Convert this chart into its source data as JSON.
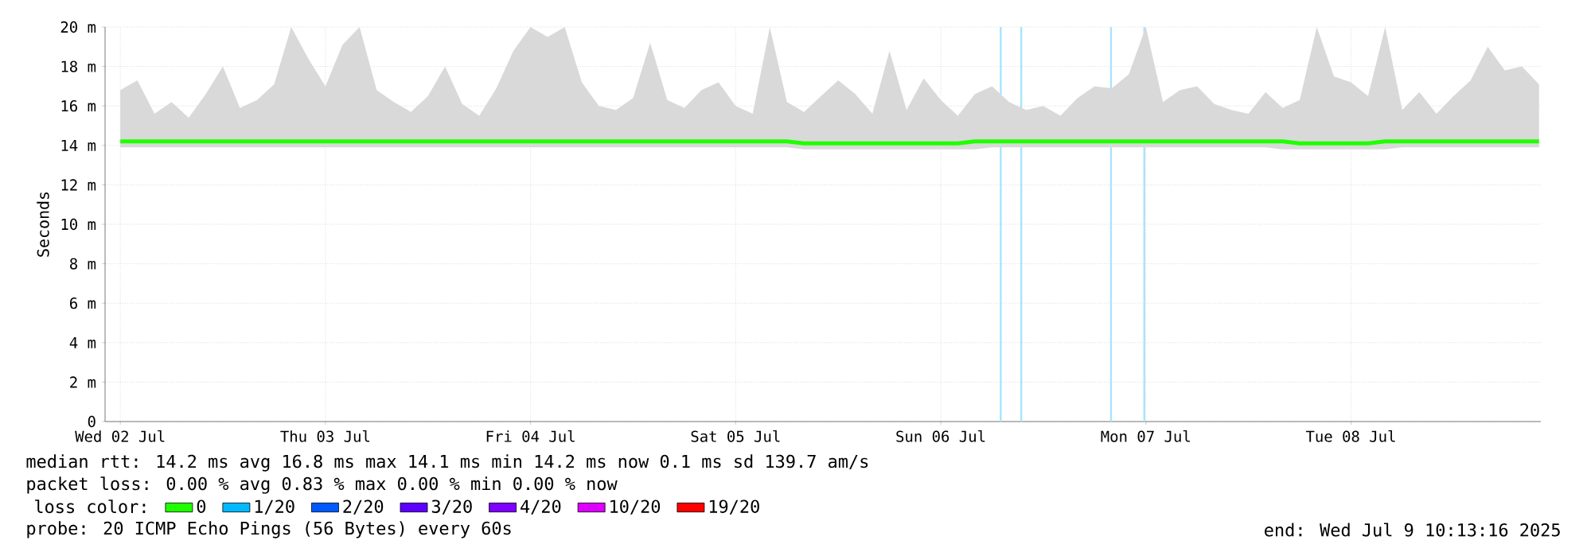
{
  "chart_data": {
    "type": "line",
    "ylabel": "Seconds",
    "xlim": [
      "2025-07-02T10:13",
      "2025-07-09T10:13"
    ],
    "xticks": [
      {
        "value": "2025-07-02T12:00",
        "label": "Wed 02 Jul"
      },
      {
        "value": "2025-07-03T12:00",
        "label": "Thu 03 Jul"
      },
      {
        "value": "2025-07-04T12:00",
        "label": "Fri 04 Jul"
      },
      {
        "value": "2025-07-05T12:00",
        "label": "Sat 05 Jul"
      },
      {
        "value": "2025-07-06T12:00",
        "label": "Sun 06 Jul"
      },
      {
        "value": "2025-07-07T12:00",
        "label": "Mon 07 Jul"
      },
      {
        "value": "2025-07-08T12:00",
        "label": "Tue 08 Jul"
      }
    ],
    "ylim": [
      0,
      20
    ],
    "yticks": [
      0,
      {
        "value": 2,
        "label": "2 m"
      },
      {
        "value": 4,
        "label": "4 m"
      },
      {
        "value": 6,
        "label": "6 m"
      },
      {
        "value": 8,
        "label": "8 m"
      },
      {
        "value": 10,
        "label": "10 m"
      },
      {
        "value": 12,
        "label": "12 m"
      },
      {
        "value": 14,
        "label": "14 m"
      },
      {
        "value": 16,
        "label": "16 m"
      },
      {
        "value": 18,
        "label": "18 m"
      },
      {
        "value": 20,
        "label": "20 m"
      }
    ],
    "grid": true,
    "legend": "bottom",
    "legend_title": "loss color:",
    "x": [
      "2025-07-02T12:00",
      "2025-07-02T14:00",
      "2025-07-02T16:00",
      "2025-07-02T18:00",
      "2025-07-02T20:00",
      "2025-07-02T22:00",
      "2025-07-03T00:00",
      "2025-07-03T02:00",
      "2025-07-03T04:00",
      "2025-07-03T06:00",
      "2025-07-03T08:00",
      "2025-07-03T10:00",
      "2025-07-03T12:00",
      "2025-07-03T14:00",
      "2025-07-03T16:00",
      "2025-07-03T18:00",
      "2025-07-03T20:00",
      "2025-07-03T22:00",
      "2025-07-04T00:00",
      "2025-07-04T02:00",
      "2025-07-04T04:00",
      "2025-07-04T06:00",
      "2025-07-04T08:00",
      "2025-07-04T10:00",
      "2025-07-04T12:00",
      "2025-07-04T14:00",
      "2025-07-04T16:00",
      "2025-07-04T18:00",
      "2025-07-04T20:00",
      "2025-07-04T22:00",
      "2025-07-05T00:00",
      "2025-07-05T02:00",
      "2025-07-05T04:00",
      "2025-07-05T06:00",
      "2025-07-05T08:00",
      "2025-07-05T10:00",
      "2025-07-05T12:00",
      "2025-07-05T14:00",
      "2025-07-05T16:00",
      "2025-07-05T18:00",
      "2025-07-05T20:00",
      "2025-07-05T22:00",
      "2025-07-06T00:00",
      "2025-07-06T02:00",
      "2025-07-06T04:00",
      "2025-07-06T06:00",
      "2025-07-06T08:00",
      "2025-07-06T10:00",
      "2025-07-06T12:00",
      "2025-07-06T14:00",
      "2025-07-06T16:00",
      "2025-07-06T18:00",
      "2025-07-06T20:00",
      "2025-07-06T22:00",
      "2025-07-07T00:00",
      "2025-07-07T02:00",
      "2025-07-07T04:00",
      "2025-07-07T06:00",
      "2025-07-07T08:00",
      "2025-07-07T10:00",
      "2025-07-07T12:00",
      "2025-07-07T14:00",
      "2025-07-07T16:00",
      "2025-07-07T18:00",
      "2025-07-07T20:00",
      "2025-07-07T22:00",
      "2025-07-08T00:00",
      "2025-07-08T02:00",
      "2025-07-08T04:00",
      "2025-07-08T06:00",
      "2025-07-08T08:00",
      "2025-07-08T10:00",
      "2025-07-08T12:00",
      "2025-07-08T14:00",
      "2025-07-08T16:00",
      "2025-07-08T18:00",
      "2025-07-08T20:00",
      "2025-07-08T22:00",
      "2025-07-09T00:00",
      "2025-07-09T02:00",
      "2025-07-09T04:00",
      "2025-07-09T06:00",
      "2025-07-09T08:00",
      "2025-07-09T10:00"
    ],
    "series": [
      {
        "name": "0",
        "color": "#20ff00",
        "values": [
          14.2,
          14.2,
          14.2,
          14.2,
          14.2,
          14.2,
          14.2,
          14.2,
          14.2,
          14.2,
          14.2,
          14.2,
          14.2,
          14.2,
          14.2,
          14.2,
          14.2,
          14.2,
          14.2,
          14.2,
          14.2,
          14.2,
          14.2,
          14.2,
          14.2,
          14.2,
          14.2,
          14.2,
          14.2,
          14.2,
          14.2,
          14.2,
          14.2,
          14.2,
          14.2,
          14.2,
          14.2,
          14.2,
          14.2,
          14.2,
          14.1,
          14.1,
          14.1,
          14.1,
          14.1,
          14.1,
          14.1,
          14.1,
          14.1,
          14.1,
          14.2,
          14.2,
          14.2,
          14.2,
          14.2,
          14.2,
          14.2,
          14.2,
          14.2,
          14.2,
          14.2,
          14.2,
          14.2,
          14.2,
          14.2,
          14.2,
          14.2,
          14.2,
          14.2,
          14.1,
          14.1,
          14.1,
          14.1,
          14.1,
          14.2,
          14.2,
          14.2,
          14.2,
          14.2,
          14.2,
          14.2,
          14.2,
          14.2,
          14.2
        ],
        "lower": [
          13.9,
          13.9,
          13.9,
          13.9,
          13.9,
          13.9,
          13.9,
          13.9,
          13.9,
          13.9,
          13.9,
          13.9,
          13.9,
          13.9,
          13.9,
          13.9,
          13.9,
          13.9,
          13.9,
          13.9,
          13.9,
          13.9,
          13.9,
          13.9,
          13.9,
          13.9,
          13.9,
          13.9,
          13.9,
          13.9,
          13.9,
          13.9,
          13.9,
          13.9,
          13.9,
          13.9,
          13.9,
          13.9,
          13.9,
          13.9,
          13.8,
          13.8,
          13.8,
          13.8,
          13.8,
          13.8,
          13.8,
          13.8,
          13.8,
          13.8,
          13.8,
          13.9,
          13.9,
          13.9,
          13.9,
          13.9,
          13.9,
          13.9,
          13.9,
          13.9,
          13.9,
          13.9,
          13.9,
          13.9,
          13.9,
          13.9,
          13.9,
          13.9,
          13.8,
          13.8,
          13.8,
          13.8,
          13.8,
          13.8,
          13.8,
          13.9,
          13.9,
          13.9,
          13.9,
          13.9,
          13.9,
          13.9,
          13.9,
          13.9
        ],
        "upper": [
          16.8,
          17.3,
          15.6,
          16.2,
          15.4,
          16.6,
          18.0,
          15.9,
          16.3,
          17.1,
          20.0,
          18.4,
          17.0,
          19.1,
          20.0,
          16.8,
          16.2,
          15.7,
          16.5,
          18.0,
          16.1,
          15.5,
          16.9,
          18.8,
          20.0,
          19.5,
          20.0,
          17.2,
          16.0,
          15.8,
          16.4,
          19.2,
          16.3,
          15.9,
          16.8,
          17.2,
          16.0,
          15.6,
          20.0,
          16.2,
          15.7,
          16.5,
          17.3,
          16.6,
          15.6,
          18.8,
          15.8,
          17.4,
          16.3,
          15.5,
          16.6,
          17.0,
          16.2,
          15.8,
          16.0,
          15.5,
          16.4,
          17.0,
          16.9,
          17.6,
          20.0,
          16.2,
          16.8,
          17.0,
          16.1,
          15.8,
          15.6,
          16.7,
          15.9,
          16.3,
          20.0,
          17.5,
          17.2,
          16.5,
          20.0,
          15.8,
          16.7,
          15.6,
          16.5,
          17.3,
          19.0,
          17.8,
          18.0,
          17.1
        ]
      },
      {
        "name": "1/20",
        "color": "#00b8ff",
        "values": [
          null,
          null,
          null,
          null,
          null,
          null,
          null,
          null,
          null,
          null,
          null,
          null,
          null,
          null,
          null,
          null,
          null,
          null,
          null,
          null,
          null,
          null,
          null,
          null,
          null,
          null,
          null,
          null,
          null,
          null,
          null,
          null,
          null,
          null,
          null,
          null,
          null,
          null,
          null,
          null,
          null,
          null,
          null,
          null,
          null,
          null,
          null,
          null,
          null,
          null,
          null,
          null,
          null,
          null,
          null,
          null,
          null,
          null,
          null,
          null,
          null,
          null,
          null,
          null,
          null,
          null,
          null,
          null,
          null,
          null,
          null,
          null,
          null,
          null,
          null,
          null,
          null,
          null,
          null,
          null,
          null,
          null,
          null,
          null
        ]
      },
      {
        "name": "2/20",
        "color": "#0059ff",
        "values": [
          null,
          null,
          null,
          null,
          null,
          null,
          null,
          null,
          null,
          null,
          null,
          null,
          null,
          null,
          null,
          null,
          null,
          null,
          null,
          null,
          null,
          null,
          null,
          null,
          null,
          null,
          null,
          null,
          null,
          null,
          null,
          null,
          null,
          null,
          null,
          null,
          null,
          null,
          null,
          null,
          null,
          null,
          null,
          null,
          null,
          null,
          null,
          null,
          null,
          null,
          null,
          null,
          null,
          null,
          null,
          null,
          null,
          null,
          null,
          null,
          null,
          null,
          null,
          null,
          null,
          null,
          null,
          null,
          null,
          null,
          null,
          null,
          null,
          null,
          null,
          null,
          null,
          null,
          null,
          null,
          null,
          null,
          null,
          null
        ]
      },
      {
        "name": "3/20",
        "color": "#5e00ff",
        "values": [
          null,
          null,
          null,
          null,
          null,
          null,
          null,
          null,
          null,
          null,
          null,
          null,
          null,
          null,
          null,
          null,
          null,
          null,
          null,
          null,
          null,
          null,
          null,
          null,
          null,
          null,
          null,
          null,
          null,
          null,
          null,
          null,
          null,
          null,
          null,
          null,
          null,
          null,
          null,
          null,
          null,
          null,
          null,
          null,
          null,
          null,
          null,
          null,
          null,
          null,
          null,
          null,
          null,
          null,
          null,
          null,
          null,
          null,
          null,
          null,
          null,
          null,
          null,
          null,
          null,
          null,
          null,
          null,
          null,
          null,
          null,
          null,
          null,
          null,
          null,
          null,
          null,
          null,
          null,
          null,
          null,
          null,
          null,
          null
        ]
      },
      {
        "name": "4/20",
        "color": "#7e00ff",
        "values": [
          null,
          null,
          null,
          null,
          null,
          null,
          null,
          null,
          null,
          null,
          null,
          null,
          null,
          null,
          null,
          null,
          null,
          null,
          null,
          null,
          null,
          null,
          null,
          null,
          null,
          null,
          null,
          null,
          null,
          null,
          null,
          null,
          null,
          null,
          null,
          null,
          null,
          null,
          null,
          null,
          null,
          null,
          null,
          null,
          null,
          null,
          null,
          null,
          null,
          null,
          null,
          null,
          null,
          null,
          null,
          null,
          null,
          null,
          null,
          null,
          null,
          null,
          null,
          null,
          null,
          null,
          null,
          null,
          null,
          null,
          null,
          null,
          null,
          null,
          null,
          null,
          null,
          null,
          null,
          null,
          null,
          null,
          null,
          null
        ]
      },
      {
        "name": "10/20",
        "color": "#dd00ff",
        "values": [
          null,
          null,
          null,
          null,
          null,
          null,
          null,
          null,
          null,
          null,
          null,
          null,
          null,
          null,
          null,
          null,
          null,
          null,
          null,
          null,
          null,
          null,
          null,
          null,
          null,
          null,
          null,
          null,
          null,
          null,
          null,
          null,
          null,
          null,
          null,
          null,
          null,
          null,
          null,
          null,
          null,
          null,
          null,
          null,
          null,
          null,
          null,
          null,
          null,
          null,
          null,
          null,
          null,
          null,
          null,
          null,
          null,
          null,
          null,
          null,
          null,
          null,
          null,
          null,
          null,
          null,
          null,
          null,
          null,
          null,
          null,
          null,
          null,
          null,
          null,
          null,
          null,
          null,
          null,
          null,
          null,
          null,
          null,
          null
        ]
      },
      {
        "name": "19/20",
        "color": "#ff0000",
        "values": [
          null,
          null,
          null,
          null,
          null,
          null,
          null,
          null,
          null,
          null,
          null,
          null,
          null,
          null,
          null,
          null,
          null,
          null,
          null,
          null,
          null,
          null,
          null,
          null,
          null,
          null,
          null,
          null,
          null,
          null,
          null,
          null,
          null,
          null,
          null,
          null,
          null,
          null,
          null,
          null,
          null,
          null,
          null,
          null,
          null,
          null,
          null,
          null,
          null,
          null,
          null,
          null,
          null,
          null,
          null,
          null,
          null,
          null,
          null,
          null,
          null,
          null,
          null,
          null,
          null,
          null,
          null,
          null,
          null,
          null,
          null,
          null,
          null,
          null,
          null,
          null,
          null,
          null,
          null,
          null,
          null,
          null,
          null,
          null
        ]
      }
    ],
    "ref_lines": [
      {
        "axis": "x",
        "value": "2025-07-06T19:01",
        "color": "#a8e4ff"
      },
      {
        "axis": "x",
        "value": "2025-07-06T21:25",
        "color": "#a8e4ff"
      },
      {
        "axis": "x",
        "value": "2025-07-07T07:55",
        "color": "#a8e4ff"
      },
      {
        "axis": "x",
        "value": "2025-07-07T11:49",
        "color": "#a8e4ff"
      }
    ],
    "annotations": [
      "median rtt:  14.2 ms avg  16.8 ms max  14.1 ms min  14.2 ms now  0.1 ms sd  139.7   am/s",
      "packet loss: 0.00 % avg  0.83 % max  0.00 % min  0.00 % now",
      "probe:       20 ICMP Echo Pings (56 Bytes) every 60s",
      "end: Wed Jul  9 10:13:16 2025"
    ]
  }
}
